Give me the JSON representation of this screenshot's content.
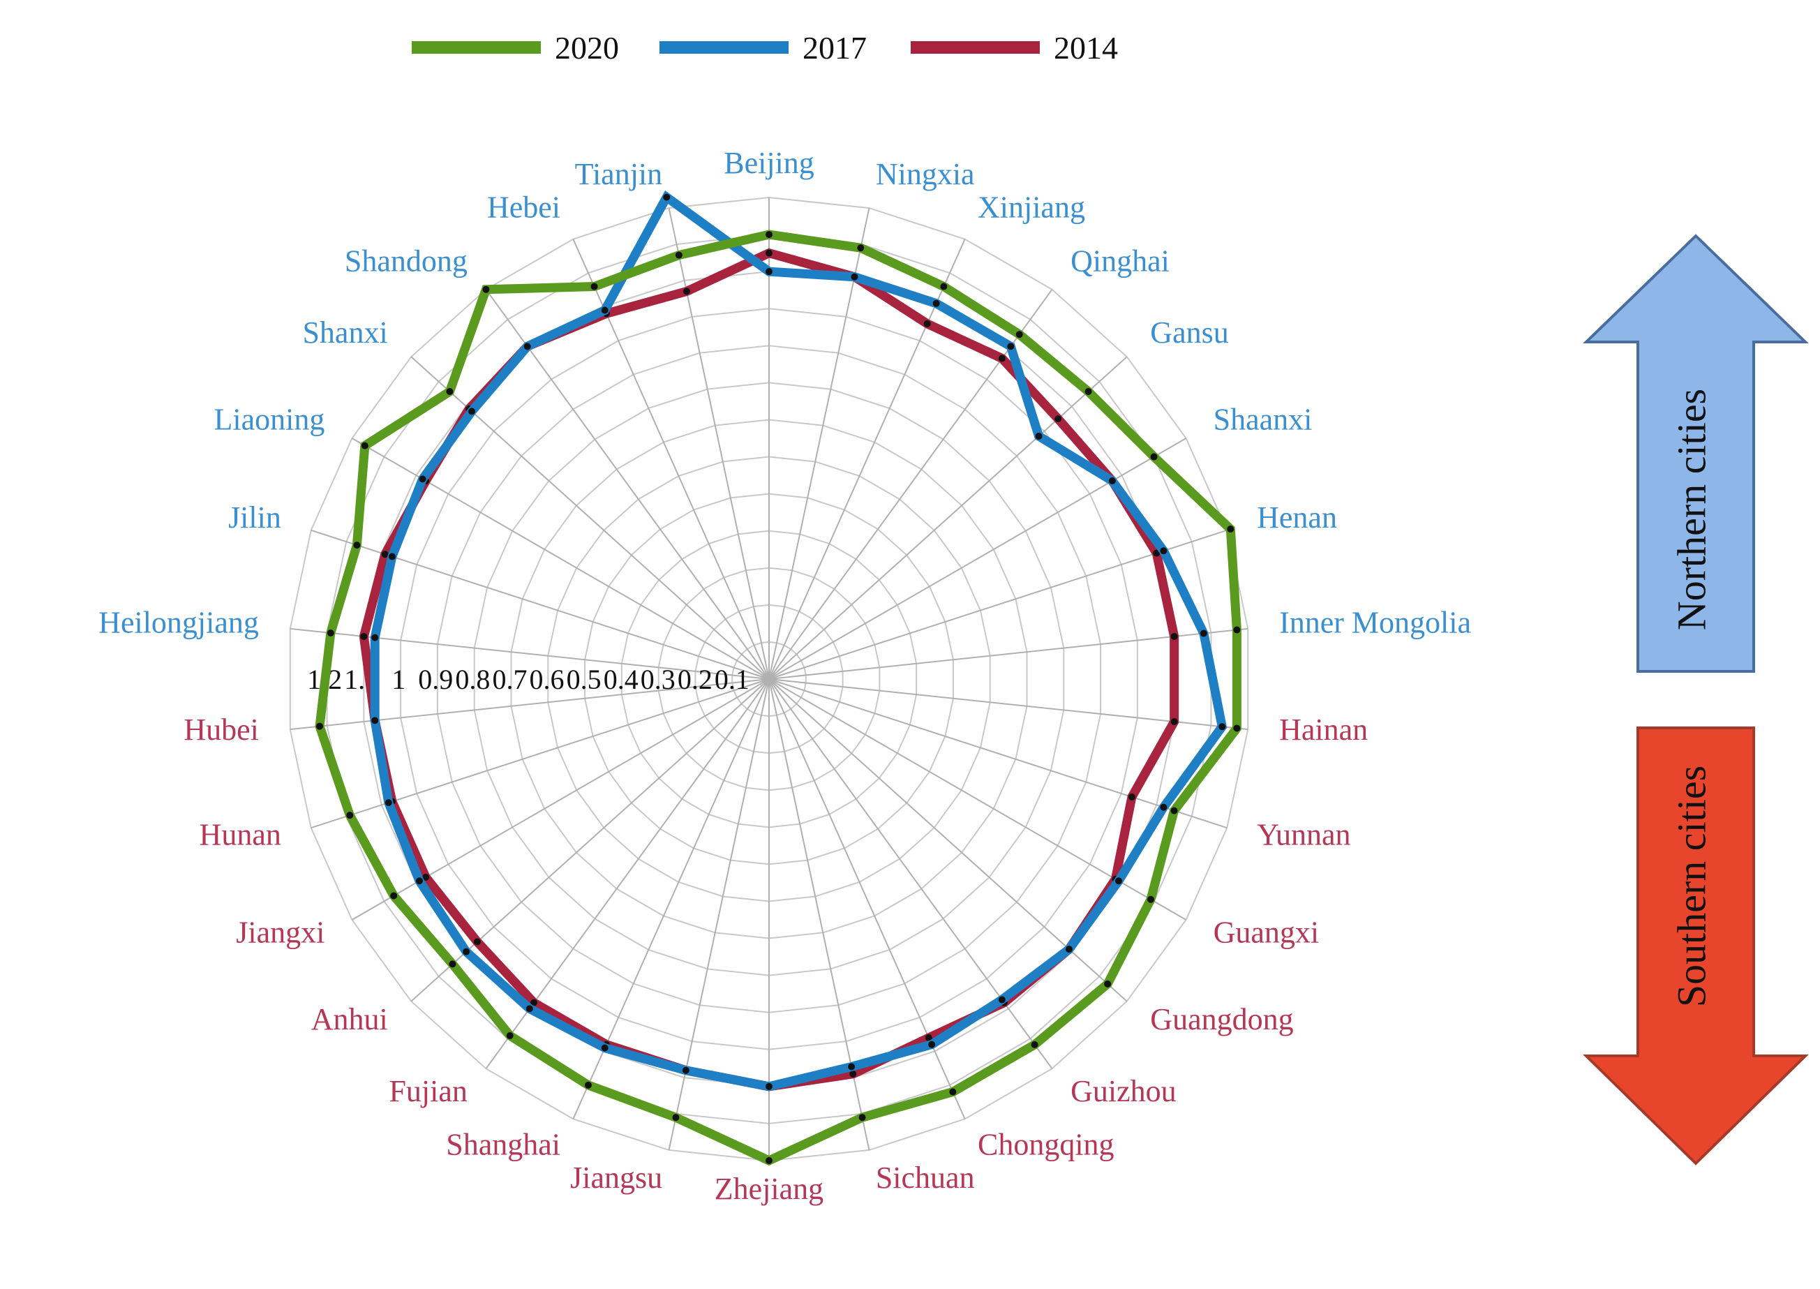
{
  "legend": {
    "items": [
      {
        "label": "2020",
        "color": "#5a9a1e"
      },
      {
        "label": "2017",
        "color": "#1f7fc4"
      },
      {
        "label": "2014",
        "color": "#a8243e"
      }
    ]
  },
  "arrows": {
    "north_label": "Northern cities",
    "south_label": "Southern cities",
    "north_color": "#8eb6e8",
    "south_color": "#e8462c"
  },
  "chart_data": {
    "type": "radar",
    "axis_max": 1.3,
    "ring_step": 0.1,
    "tick_labels": [
      "1.2",
      "1.1",
      "1",
      "0.9",
      "0.8",
      "0.7",
      "0.6",
      "0.5",
      "0.4",
      "0.3",
      "0.2",
      "0.1"
    ],
    "north_label_color": "#3c8fcf",
    "south_label_color": "#b43856",
    "categories": [
      {
        "name": "Beijing",
        "group": "north"
      },
      {
        "name": "Ningxia",
        "group": "north"
      },
      {
        "name": "Xinjiang",
        "group": "north"
      },
      {
        "name": "Qinghai",
        "group": "north"
      },
      {
        "name": "Gansu",
        "group": "north"
      },
      {
        "name": "Shaanxi",
        "group": "north"
      },
      {
        "name": "Henan",
        "group": "north"
      },
      {
        "name": "Inner Mongolia",
        "group": "north"
      },
      {
        "name": "Hainan",
        "group": "south"
      },
      {
        "name": "Yunnan",
        "group": "south"
      },
      {
        "name": "Guangxi",
        "group": "south"
      },
      {
        "name": "Guangdong",
        "group": "south"
      },
      {
        "name": "Guizhou",
        "group": "south"
      },
      {
        "name": "Chongqing",
        "group": "south"
      },
      {
        "name": "Sichuan",
        "group": "south"
      },
      {
        "name": "Zhejiang",
        "group": "south"
      },
      {
        "name": "Jiangsu",
        "group": "south"
      },
      {
        "name": "Shanghai",
        "group": "south"
      },
      {
        "name": "Fujian",
        "group": "south"
      },
      {
        "name": "Anhui",
        "group": "south"
      },
      {
        "name": "Jiangxi",
        "group": "south"
      },
      {
        "name": "Hunan",
        "group": "south"
      },
      {
        "name": "Hubei",
        "group": "south"
      },
      {
        "name": "Heilongjiang",
        "group": "north"
      },
      {
        "name": "Jilin",
        "group": "north"
      },
      {
        "name": "Liaoning",
        "group": "north"
      },
      {
        "name": "Shanxi",
        "group": "north"
      },
      {
        "name": "Shandong",
        "group": "north"
      },
      {
        "name": "Hebei",
        "group": "north"
      },
      {
        "name": "Tianjin",
        "group": "north"
      }
    ],
    "series": [
      {
        "name": "2020",
        "color": "#5a9a1e",
        "values": [
          1.2,
          1.19,
          1.16,
          1.15,
          1.16,
          1.2,
          1.31,
          1.27,
          1.27,
          1.15,
          1.19,
          1.23,
          1.22,
          1.22,
          1.21,
          1.3,
          1.21,
          1.2,
          1.19,
          1.15,
          1.17,
          1.19,
          1.22,
          1.19,
          1.17,
          1.26,
          1.16,
          1.3,
          1.16,
          1.17
        ]
      },
      {
        "name": "2017",
        "color": "#1f7fc4",
        "values": [
          1.1,
          1.11,
          1.11,
          1.11,
          0.98,
          1.07,
          1.12,
          1.18,
          1.23,
          1.12,
          1.09,
          1.09,
          1.07,
          1.08,
          1.07,
          1.1,
          1.08,
          1.09,
          1.1,
          1.1,
          1.09,
          1.08,
          1.07,
          1.07,
          1.07,
          1.08,
          1.08,
          1.11,
          1.09,
          1.33
        ]
      },
      {
        "name": "2014",
        "color": "#a8243e",
        "values": [
          1.15,
          1.11,
          1.05,
          1.07,
          1.05,
          1.07,
          1.1,
          1.1,
          1.1,
          1.03,
          1.08,
          1.09,
          1.08,
          1.06,
          1.09,
          1.1,
          1.08,
          1.08,
          1.08,
          1.06,
          1.07,
          1.07,
          1.07,
          1.1,
          1.09,
          1.07,
          1.09,
          1.11,
          1.08,
          1.07
        ]
      }
    ]
  }
}
